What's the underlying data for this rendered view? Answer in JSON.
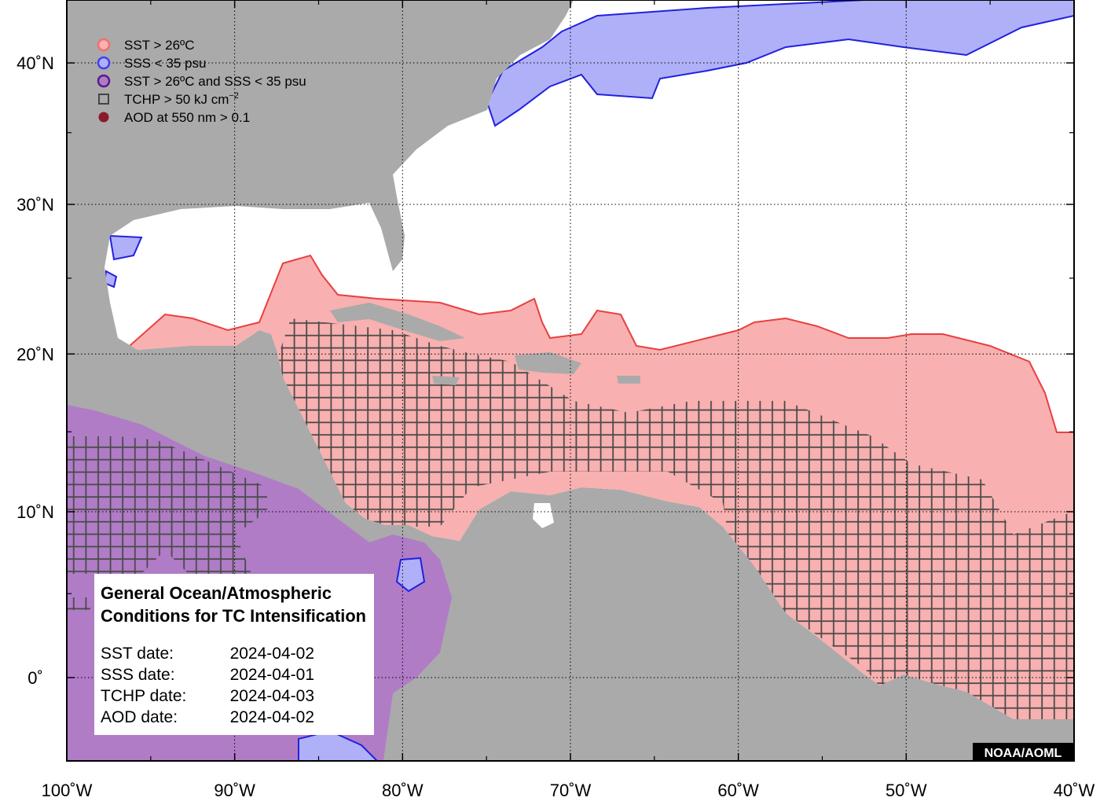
{
  "map": {
    "x_ticks": [
      {
        "value": -100,
        "label": "100˚W"
      },
      {
        "value": -90,
        "label": "90˚W"
      },
      {
        "value": -80,
        "label": "80˚W"
      },
      {
        "value": -70,
        "label": "70˚W"
      },
      {
        "value": -60,
        "label": "60˚W"
      },
      {
        "value": -50,
        "label": "50˚W"
      },
      {
        "value": -40,
        "label": "40˚W"
      }
    ],
    "y_ticks": [
      {
        "value": 40,
        "label": "40˚N"
      },
      {
        "value": 30,
        "label": "30˚N"
      },
      {
        "value": 20,
        "label": "20˚N"
      },
      {
        "value": 10,
        "label": "10˚N"
      },
      {
        "value": 0,
        "label": "0˚"
      }
    ]
  },
  "legend": [
    {
      "label": "SST > 26ºC"
    },
    {
      "label": "SSS < 35 psu"
    },
    {
      "label": "SST > 26ºC and SSS < 35 psu"
    },
    {
      "label": "TCHP > 50 kJ cm",
      "superscript": "−2"
    },
    {
      "label": "AOD at 550 nm > 0.1"
    }
  ],
  "info_box": {
    "title": [
      "General Ocean/Atmospheric",
      "Conditions for TC Intensification"
    ],
    "dates": [
      {
        "label": "SST date:",
        "value": "2024-04-02"
      },
      {
        "label": "SSS date:",
        "value": "2024-04-01"
      },
      {
        "label": "TCHP date:",
        "value": "2024-04-03"
      },
      {
        "label": "AOD date:",
        "value": "2024-04-02"
      }
    ]
  },
  "credit": "NOAA/AOML"
}
